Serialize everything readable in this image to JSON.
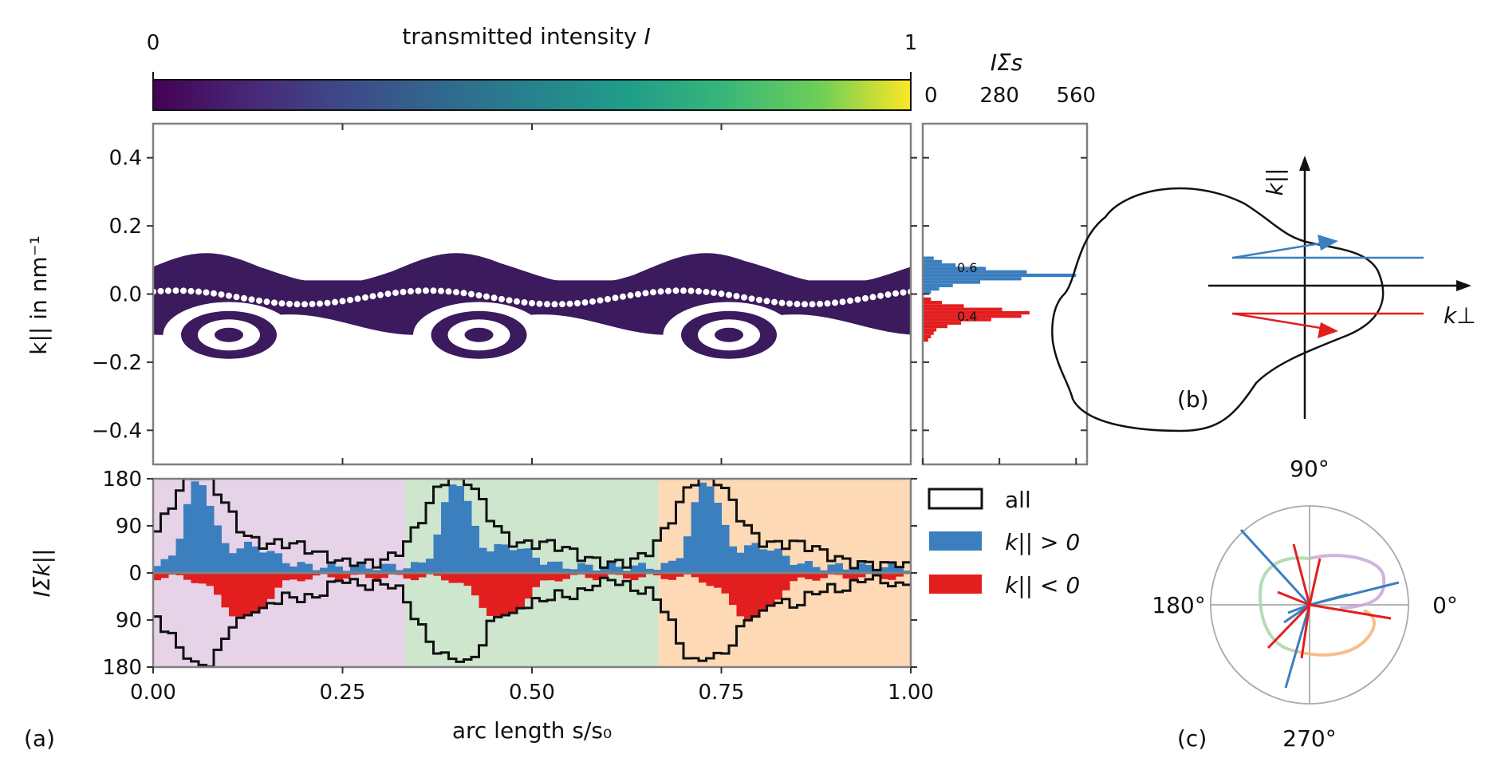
{
  "colors": {
    "blue": "#3b7fbf",
    "red": "#e31e1e",
    "purple_bg": "#e6d3e8",
    "green_bg": "#cde6cd",
    "orange_bg": "#fdd9b5",
    "axis_gray": "#808080",
    "band": "#3b1a5e"
  },
  "chart_data": [
    {
      "id": "colorbar",
      "type": "colorbar",
      "label": "transmitted intensity",
      "label_symbol": "I",
      "min_label": "0",
      "max_label": "1",
      "colormap": "viridis"
    },
    {
      "id": "phase_space",
      "type": "scatter",
      "ylabel": "k|| in nm⁻¹",
      "ylim": [
        -0.5,
        0.5
      ],
      "yticks": [
        "0.4",
        "0.2",
        "0.0",
        "−0.2",
        "−0.4"
      ],
      "ytick_values": [
        0.4,
        0.2,
        0.0,
        -0.2,
        -0.4
      ],
      "band_upper_peaks_at": [
        0.07,
        0.4,
        0.73
      ],
      "band_amplitude": 0.12
    },
    {
      "id": "side_histogram",
      "type": "bar",
      "label": "IΣs",
      "xticks": [
        "0",
        "280",
        "560"
      ],
      "xtick_values": [
        0,
        280,
        560
      ],
      "xlim": [
        0,
        600
      ],
      "series": [
        {
          "name": "k|| > 0",
          "fraction_label": "0.6",
          "k": [
            0.1,
            0.09,
            0.08,
            0.07,
            0.06,
            0.05,
            0.04,
            0.03,
            0.02,
            0.01,
            0.0
          ],
          "values": [
            40,
            70,
            120,
            230,
            380,
            560,
            360,
            210,
            110,
            60,
            30
          ]
        },
        {
          "name": "k|| < 0",
          "fraction_label": "0.4",
          "k": [
            -0.01,
            -0.02,
            -0.03,
            -0.04,
            -0.05,
            -0.06,
            -0.07,
            -0.08,
            -0.09,
            -0.1,
            -0.11,
            -0.12,
            -0.13
          ],
          "values": [
            30,
            70,
            150,
            290,
            390,
            360,
            250,
            140,
            90,
            50,
            40,
            30,
            20
          ]
        }
      ]
    },
    {
      "id": "arc_histogram",
      "type": "bar",
      "xlabel": "arc length s/s₀",
      "ylabel": "IΣk||",
      "xlim": [
        0,
        1
      ],
      "xticks": [
        "0.00",
        "0.25",
        "0.50",
        "0.75",
        "1.00"
      ],
      "xtick_values": [
        0,
        0.25,
        0.5,
        0.75,
        1.0
      ],
      "ylim": [
        -180,
        180
      ],
      "yticks": [
        "180",
        "90",
        "0",
        "90",
        "180"
      ],
      "ytick_values": [
        180,
        90,
        0,
        -90,
        -180
      ],
      "regions": [
        {
          "from": 0.0,
          "to": 0.333,
          "color": "#e6d3e8"
        },
        {
          "from": 0.333,
          "to": 0.667,
          "color": "#cde6cd"
        },
        {
          "from": 0.667,
          "to": 1.0,
          "color": "#fdd9b5"
        }
      ],
      "legend": {
        "position": "right",
        "items": [
          "all",
          "k|| > 0",
          "k|| < 0"
        ]
      },
      "peak_positions": [
        0.06,
        0.4,
        0.73
      ],
      "peak_all": 175,
      "peak_pos": 165,
      "peak_neg": 80
    }
  ],
  "panel_b": {
    "label": "(b)",
    "vertical_axis": "k||",
    "horizontal_axis": "k⊥"
  },
  "panel_c": {
    "label": "(c)",
    "angle_labels": [
      "90°",
      "180°",
      "0°",
      "270°"
    ]
  },
  "panel_a": {
    "label": "(a)"
  }
}
